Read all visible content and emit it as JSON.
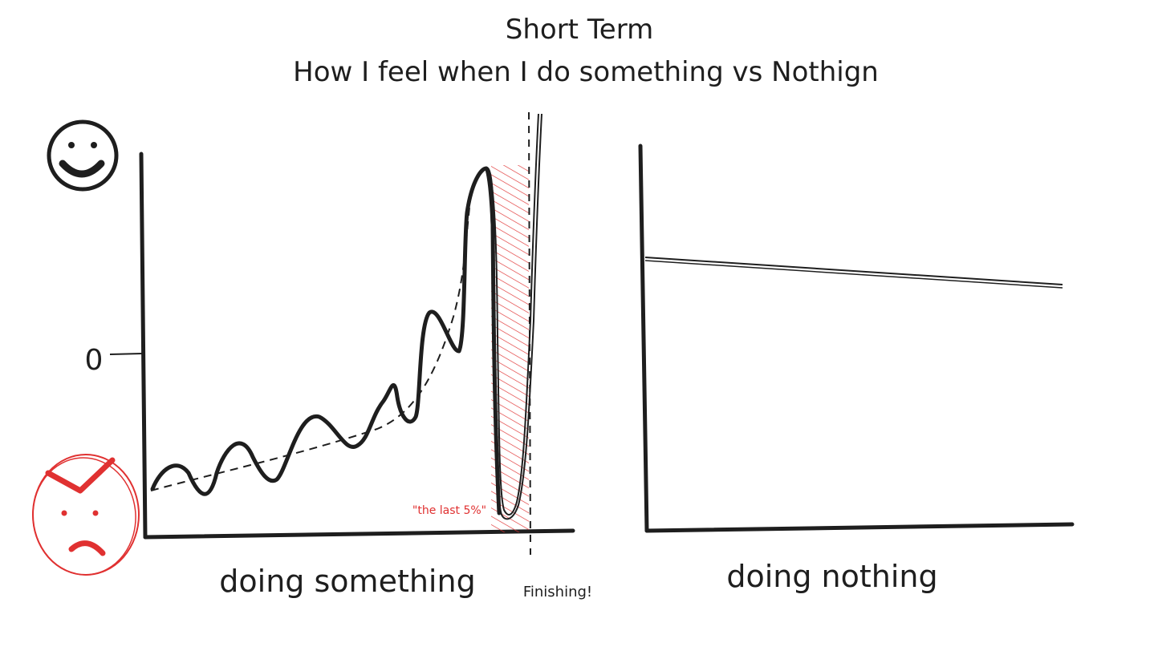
{
  "title": {
    "line1": "Short Term",
    "line2": "How I feel when I do something vs Nothign"
  },
  "left_chart": {
    "zero_label": "0",
    "x_label": "doing something",
    "finish_label": "Finishing!",
    "annotation": "\"the last 5%\""
  },
  "right_chart": {
    "x_label": "doing nothing"
  },
  "icons": {
    "top": "happy-face-icon",
    "bottom": "angry-face-icon"
  },
  "colors": {
    "ink": "#1e1e1e",
    "accent": "#e03131"
  }
}
